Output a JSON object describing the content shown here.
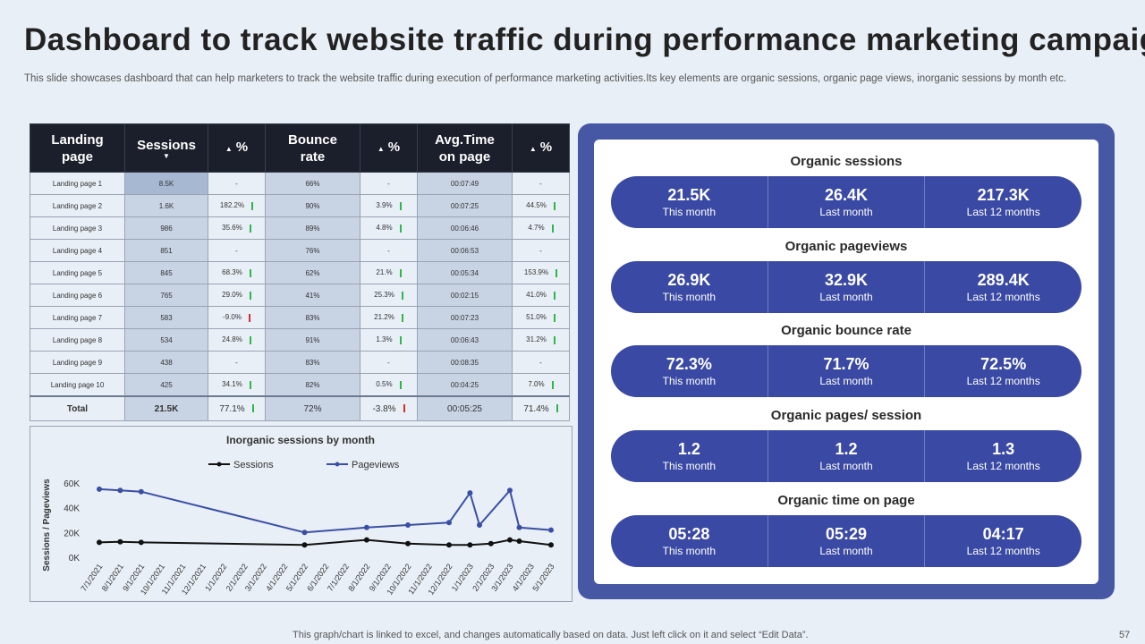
{
  "title": "Dashboard to track website traffic during performance marketing campaigns",
  "subtitle": "This slide showcases dashboard that can help marketers to track the website traffic during execution of performance marketing activities.Its key elements are organic sessions, organic page views, inorganic sessions by month etc.",
  "table": {
    "headers": [
      "Landing page",
      "Sessions",
      "%",
      "Bounce rate",
      "%",
      "Avg.Time on page",
      "%"
    ],
    "rows": [
      {
        "page": "Landing page 1",
        "sessions": "8.5K",
        "sp": "-",
        "sp_dir": "",
        "bounce": "66%",
        "bp": "-",
        "bp_dir": "",
        "time": "00:07:49",
        "tp": "-",
        "tp_dir": ""
      },
      {
        "page": "Landing page 2",
        "sessions": "1.6K",
        "sp": "182.2%",
        "sp_dir": "up",
        "bounce": "90%",
        "bp": "3.9%",
        "bp_dir": "up",
        "time": "00:07:25",
        "tp": "44.5%",
        "tp_dir": "up"
      },
      {
        "page": "Landing page 3",
        "sessions": "986",
        "sp": "35.6%",
        "sp_dir": "up",
        "bounce": "89%",
        "bp": "4.8%",
        "bp_dir": "up",
        "time": "00:06:46",
        "tp": "4.7%",
        "tp_dir": "up"
      },
      {
        "page": "Landing page 4",
        "sessions": "851",
        "sp": "-",
        "sp_dir": "",
        "bounce": "76%",
        "bp": "-",
        "bp_dir": "",
        "time": "00:06:53",
        "tp": "-",
        "tp_dir": ""
      },
      {
        "page": "Landing page 5",
        "sessions": "845",
        "sp": "68.3%",
        "sp_dir": "up",
        "bounce": "62%",
        "bp": "21.%",
        "bp_dir": "up",
        "time": "00:05:34",
        "tp": "153.9%",
        "tp_dir": "up"
      },
      {
        "page": "Landing page 6",
        "sessions": "765",
        "sp": "29.0%",
        "sp_dir": "up",
        "bounce": "41%",
        "bp": "25.3%",
        "bp_dir": "up",
        "time": "00:02:15",
        "tp": "41.0%",
        "tp_dir": "up"
      },
      {
        "page": "Landing page 7",
        "sessions": "583",
        "sp": "-9.0%",
        "sp_dir": "down",
        "bounce": "83%",
        "bp": "21.2%",
        "bp_dir": "up",
        "time": "00:07:23",
        "tp": "51.0%",
        "tp_dir": "up"
      },
      {
        "page": "Landing page 8",
        "sessions": "534",
        "sp": "24.8%",
        "sp_dir": "up",
        "bounce": "91%",
        "bp": "1.3%",
        "bp_dir": "up",
        "time": "00:06:43",
        "tp": "31.2%",
        "tp_dir": "up"
      },
      {
        "page": "Landing page 9",
        "sessions": "438",
        "sp": "-",
        "sp_dir": "",
        "bounce": "83%",
        "bp": "-",
        "bp_dir": "",
        "time": "00:08:35",
        "tp": "-",
        "tp_dir": ""
      },
      {
        "page": "Landing page 10",
        "sessions": "425",
        "sp": "34.1%",
        "sp_dir": "up",
        "bounce": "82%",
        "bp": "0.5%",
        "bp_dir": "up",
        "time": "00:04:25",
        "tp": "7.0%",
        "tp_dir": "up"
      }
    ],
    "total": {
      "page": "Total",
      "sessions": "21.5K",
      "sp": "77.1%",
      "sp_dir": "up",
      "bounce": "72%",
      "bp": "-3.8%",
      "bp_dir": "down",
      "time": "00:05:25",
      "tp": "71.4%",
      "tp_dir": "up"
    },
    "colors": {
      "up": "#2fb64a",
      "down": "#d92b2b"
    }
  },
  "chart_data": {
    "type": "line",
    "title": "Inorganic sessions by month",
    "ylabel": "Sessions / Pageviews",
    "xlabel": "",
    "ylim": [
      0,
      60000
    ],
    "yticks": [
      "0K",
      "20K",
      "40K",
      "60K"
    ],
    "legend_position": "top",
    "categories": [
      "7/1/2021",
      "8/1/2021",
      "9/1/2021",
      "10/1/2021",
      "11/1/2021",
      "12/1/2021",
      "1/1/2022",
      "2/1/2022",
      "3/1/2022",
      "4/1/2022",
      "5/1/2022",
      "6/1/2022",
      "7/1/2022",
      "8/1/2022",
      "9/1/2022",
      "10/1/2022",
      "11/1/2022",
      "12/1/2022",
      "1/1/2023",
      "2/1/2023",
      "3/1/2023",
      "4/1/2023",
      "5/1/2023"
    ],
    "series": [
      {
        "name": "Sessions",
        "color": "#111111",
        "points": [
          [
            "7/1/2021",
            12000
          ],
          [
            "8/1/2021",
            12500
          ],
          [
            "9/1/2021",
            12000
          ],
          [
            "5/1/2022",
            10000
          ],
          [
            "8/1/2022",
            14000
          ],
          [
            "10/1/2022",
            11000
          ],
          [
            "12/1/2022",
            10000
          ],
          [
            "1/1/2023",
            10000
          ],
          [
            "2/1/2023",
            11000
          ],
          [
            "3/1/2023",
            14000
          ],
          [
            "3/15/2023",
            13000
          ],
          [
            "5/1/2023",
            10000
          ]
        ]
      },
      {
        "name": "Pageviews",
        "color": "#3a4fa3",
        "points": [
          [
            "7/1/2021",
            55000
          ],
          [
            "8/1/2021",
            54000
          ],
          [
            "9/1/2021",
            53000
          ],
          [
            "5/1/2022",
            20000
          ],
          [
            "8/1/2022",
            24000
          ],
          [
            "10/1/2022",
            26000
          ],
          [
            "12/1/2022",
            28000
          ],
          [
            "1/1/2023",
            52000
          ],
          [
            "1/15/2023",
            26000
          ],
          [
            "3/1/2023",
            54000
          ],
          [
            "3/15/2023",
            24000
          ],
          [
            "5/1/2023",
            22000
          ]
        ]
      }
    ]
  },
  "kpis": [
    {
      "title": "Organic sessions",
      "items": [
        {
          "value": "21.5K",
          "label": "This month"
        },
        {
          "value": "26.4K",
          "label": "Last month"
        },
        {
          "value": "217.3K",
          "label": "Last 12 months"
        }
      ]
    },
    {
      "title": "Organic pageviews",
      "items": [
        {
          "value": "26.9K",
          "label": "This month"
        },
        {
          "value": "32.9K",
          "label": "Last month"
        },
        {
          "value": "289.4K",
          "label": "Last 12 months"
        }
      ]
    },
    {
      "title": "Organic bounce rate",
      "items": [
        {
          "value": "72.3%",
          "label": "This month"
        },
        {
          "value": "71.7%",
          "label": "Last month"
        },
        {
          "value": "72.5%",
          "label": "Last 12 months"
        }
      ]
    },
    {
      "title": "Organic pages/ session",
      "items": [
        {
          "value": "1.2",
          "label": "This month"
        },
        {
          "value": "1.2",
          "label": "Last month"
        },
        {
          "value": "1.3",
          "label": "Last 12 months"
        }
      ]
    },
    {
      "title": "Organic time on page",
      "items": [
        {
          "value": "05:28",
          "label": "This month"
        },
        {
          "value": "05:29",
          "label": "Last month"
        },
        {
          "value": "04:17",
          "label": "Last 12 months"
        }
      ]
    }
  ],
  "footer": "This graph/chart is linked to excel,  and changes automatically based on data. Just left click on it and select “Edit Data”.",
  "page_number": "57"
}
